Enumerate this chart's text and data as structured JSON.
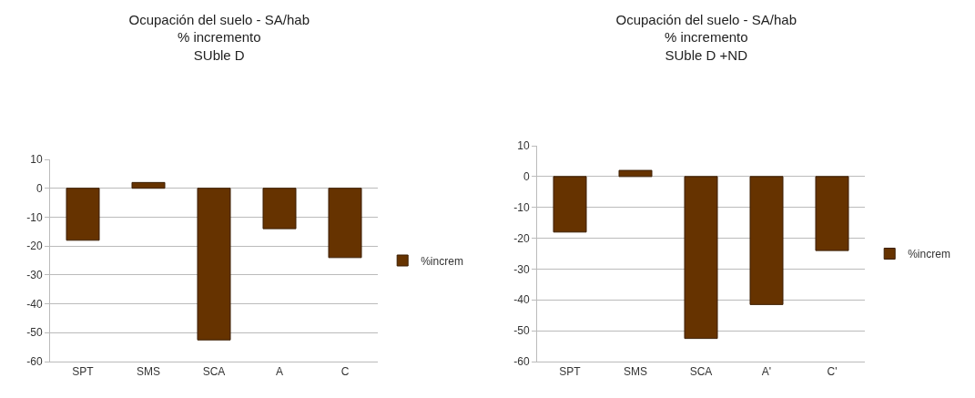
{
  "chart_data": [
    {
      "type": "bar",
      "title": "Ocupación del suelo - SA/hab\n% incremento\nSUble D",
      "categories": [
        "SPT",
        "SMS",
        "SCA",
        "A",
        "C"
      ],
      "series": [
        {
          "name": "%increm",
          "color": "#663300",
          "values": [
            -18,
            2,
            -52.5,
            -14,
            -24
          ]
        }
      ],
      "ylim": [
        -60,
        10
      ],
      "yticks": [
        -60,
        -50,
        -40,
        -30,
        -20,
        -10,
        0,
        10
      ],
      "grid": "y",
      "legend": "right"
    },
    {
      "type": "bar",
      "title": "Ocupación del suelo - SA/hab\n% incremento\nSUble D +ND",
      "categories": [
        "SPT",
        "SMS",
        "SCA",
        "A'",
        "C'"
      ],
      "series": [
        {
          "name": "%increm",
          "color": "#663300",
          "values": [
            -18,
            2,
            -52.5,
            -41.5,
            -24
          ]
        }
      ],
      "ylim": [
        -60,
        10
      ],
      "yticks": [
        -60,
        -50,
        -40,
        -30,
        -20,
        -10,
        0,
        10
      ],
      "grid": "y",
      "legend": "right"
    }
  ]
}
